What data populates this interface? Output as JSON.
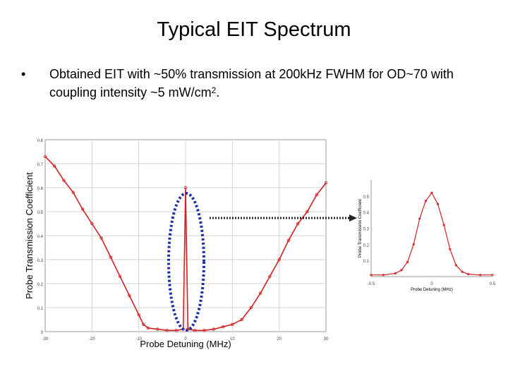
{
  "slide": {
    "title": "Typical EIT Spectrum",
    "bullet_symbol": "•",
    "bullet_text": "Obtained EIT with ~50% transmission at 200kHz FWHM for OD~70 with coupling intensity ~5 mW/cm",
    "bullet_superscript": "2",
    "bullet_end": "."
  },
  "colors": {
    "trace": "#d42020",
    "ellipse": "#1b2ea8",
    "arrow": "#222222",
    "grid": "#d4d4d4"
  },
  "chart_data": [
    {
      "type": "line",
      "xlabel": "Probe Detuning (MHz)",
      "ylabel": "Probe Transmission Coefficient",
      "xlim": [
        -30,
        30
      ],
      "ylim": [
        0,
        0.8
      ],
      "xticks": [
        "-30",
        "-20",
        "-10",
        "0",
        "10",
        "20",
        "30"
      ],
      "yticks": [
        "0",
        "0.1",
        "0.2",
        "0.3",
        "0.4",
        "0.5",
        "0.6",
        "0.7",
        "0.8"
      ],
      "grid": true,
      "series": [
        {
          "x": [
            -30,
            -28,
            -26,
            -24,
            -22,
            -20,
            -18,
            -16,
            -14,
            -12,
            -10,
            -9,
            -8,
            -6,
            -4,
            -2,
            -0.5,
            0,
            0.5,
            2,
            4,
            6,
            8,
            10,
            12,
            14,
            16,
            18,
            20,
            22,
            24,
            26,
            28,
            30
          ],
          "y": [
            0.73,
            0.69,
            0.63,
            0.58,
            0.51,
            0.45,
            0.39,
            0.31,
            0.23,
            0.15,
            0.07,
            0.03,
            0.015,
            0.01,
            0.005,
            0.005,
            0.01,
            0.6,
            0.01,
            0.005,
            0.005,
            0.01,
            0.02,
            0.03,
            0.05,
            0.1,
            0.16,
            0.23,
            0.3,
            0.38,
            0.45,
            0.5,
            0.57,
            0.62
          ]
        }
      ]
    },
    {
      "type": "line",
      "xlabel": "Probe Detuning (MHz)",
      "ylabel": "Probe Transmission Coefficient",
      "xlim": [
        -0.5,
        0.5
      ],
      "ylim": [
        0,
        0.6
      ],
      "xticks": [
        "-0.5",
        "0",
        "0.5"
      ],
      "yticks": [
        "0.1",
        "0.2",
        "0.3",
        "0.4",
        "0.5"
      ],
      "grid": false,
      "series": [
        {
          "x": [
            -0.5,
            -0.4,
            -0.3,
            -0.25,
            -0.2,
            -0.15,
            -0.1,
            -0.05,
            0,
            0.05,
            0.1,
            0.15,
            0.2,
            0.25,
            0.3,
            0.4,
            0.5
          ],
          "y": [
            0.01,
            0.01,
            0.02,
            0.04,
            0.09,
            0.2,
            0.36,
            0.47,
            0.52,
            0.45,
            0.32,
            0.17,
            0.07,
            0.03,
            0.015,
            0.01,
            0.01
          ]
        }
      ]
    }
  ]
}
